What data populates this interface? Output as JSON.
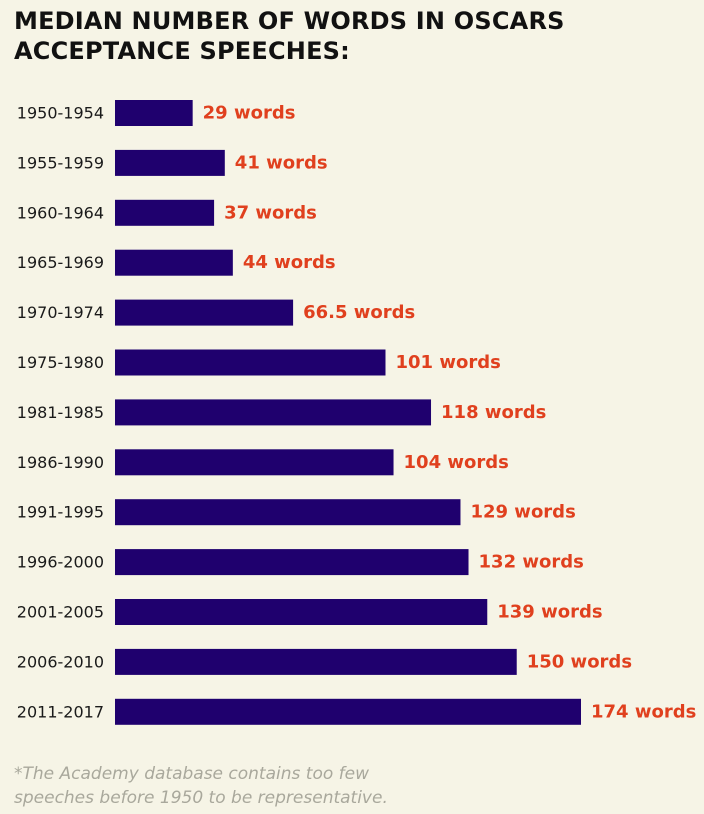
{
  "title_lines": [
    "MEDIAN NUMBER OF WORDS IN OSCARS",
    "ACCEPTANCE SPEECHES:"
  ],
  "footnote_lines": [
    "*The Academy database contains too few",
    "speeches before 1950 to be representative."
  ],
  "colors": {
    "background": "#f6f4e6",
    "bar": "#1f006e",
    "value_label": "#e0401e",
    "category_label": "#1a1a1a",
    "title": "#111111",
    "footnote": "#a9a89c"
  },
  "chart_data": {
    "type": "bar",
    "orientation": "horizontal",
    "title": "MEDIAN NUMBER OF WORDS IN OSCARS ACCEPTANCE SPEECHES:",
    "categories": [
      "1950-1954",
      "1955-1959",
      "1960-1964",
      "1965-1969",
      "1970-1974",
      "1975-1980",
      "1981-1985",
      "1986-1990",
      "1991-1995",
      "1996-2000",
      "2001-2005",
      "2006-2010",
      "2011-2017"
    ],
    "values": [
      29,
      41,
      37,
      44,
      66.5,
      101,
      118,
      104,
      129,
      132,
      139,
      150,
      174
    ],
    "value_labels": [
      "29 words",
      "41 words",
      "37 words",
      "44 words",
      "66.5 words",
      "101 words",
      "118 words",
      "104 words",
      "129 words",
      "132 words",
      "139 words",
      "150 words",
      "174 words"
    ],
    "xlabel": "",
    "ylabel": "",
    "xlim": [
      0,
      174
    ],
    "grid": false,
    "legend": "none"
  }
}
